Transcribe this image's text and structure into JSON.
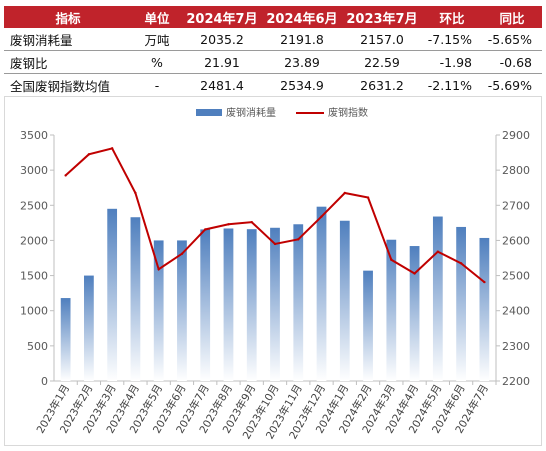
{
  "table": {
    "headers": [
      "指标",
      "单位",
      "2024年7月",
      "2024年6月",
      "2023年7月",
      "环比",
      "同比"
    ],
    "rows": [
      [
        "废钢消耗量",
        "万吨",
        "2035.2",
        "2191.8",
        "2157.0",
        "-7.15%",
        "-5.65%"
      ],
      [
        "废钢比",
        "%",
        "21.91",
        "23.89",
        "22.59",
        "-1.98",
        "-0.68"
      ],
      [
        "全国废钢指数均值",
        "-",
        "2481.4",
        "2534.9",
        "2631.2",
        "-2.11%",
        "-5.69%"
      ]
    ]
  },
  "colors": {
    "header_bg": "#c0232b",
    "bar": "#4f7fbe",
    "line": "#c00000"
  },
  "chart_data": {
    "type": "bar+line",
    "categories": [
      "2023年1月",
      "2023年2月",
      "2023年3月",
      "2023年4月",
      "2023年5月",
      "2023年6月",
      "2023年7月",
      "2023年8月",
      "2023年9月",
      "2023年10月",
      "2023年11月",
      "2023年12月",
      "2024年1月",
      "2024年2月",
      "2024年3月",
      "2024年4月",
      "2024年5月",
      "2024年6月",
      "2024年7月"
    ],
    "series": [
      {
        "name": "废钢消耗量",
        "type": "bar",
        "axis": "left",
        "values": [
          1180,
          1500,
          2450,
          2330,
          2000,
          2000,
          2157,
          2170,
          2160,
          2180,
          2230,
          2480,
          2280,
          1570,
          2010,
          1920,
          2340,
          2191.8,
          2035.2
        ]
      },
      {
        "name": "废钢指数",
        "type": "line",
        "axis": "right",
        "values": [
          2785,
          2845,
          2862,
          2735,
          2518,
          2562,
          2631.2,
          2646,
          2652,
          2590,
          2603,
          2668,
          2735,
          2722,
          2545,
          2506,
          2568,
          2534.9,
          2481.4
        ]
      }
    ],
    "y_left": {
      "ylim": [
        0,
        3500
      ],
      "ticks": [
        0,
        500,
        1000,
        1500,
        2000,
        2500,
        3000,
        3500
      ]
    },
    "y_right": {
      "ylim": [
        2200,
        2900
      ],
      "ticks": [
        2200,
        2300,
        2400,
        2500,
        2600,
        2700,
        2800,
        2900
      ]
    },
    "legend_position": "top-center",
    "grid": false
  }
}
